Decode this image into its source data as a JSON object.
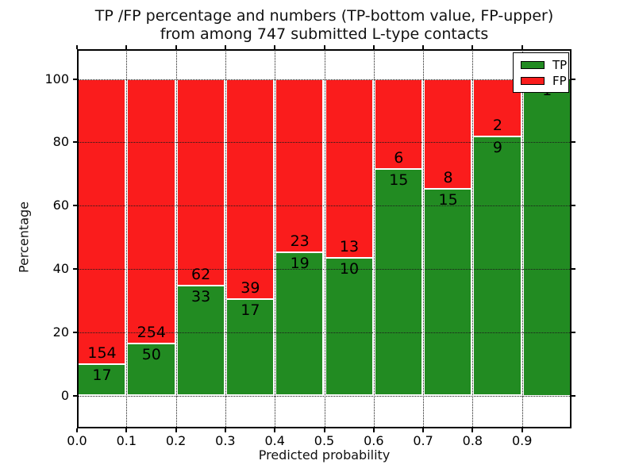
{
  "title": {
    "line1": "TP /FP percentage and numbers (TP-bottom value, FP-upper)",
    "line2": "from among 747 submitted L-type contacts"
  },
  "axis": {
    "xlabel": "Predicted probability",
    "ylabel": "Percentage",
    "x_tick_labels": [
      "0.0",
      "0.1",
      "0.2",
      "0.3",
      "0.4",
      "0.5",
      "0.6",
      "0.7",
      "0.8",
      "0.9"
    ],
    "y_tick_labels": [
      "0",
      "20",
      "40",
      "60",
      "80",
      "100"
    ]
  },
  "legend": {
    "items": [
      {
        "label": "TP",
        "color": "#228b22"
      },
      {
        "label": "FP",
        "color": "#fa1c1c"
      }
    ],
    "position": "upper right"
  },
  "colors": {
    "tp": "#228b22",
    "fp": "#fa1c1c",
    "grid": "#1a1a1a",
    "background": "#ffffff"
  },
  "chart_data": {
    "type": "bar",
    "stacked": true,
    "title": "TP /FP percentage and numbers (TP-bottom value, FP-upper) from among 747 submitted L-type contacts",
    "xlabel": "Predicted probability",
    "ylabel": "Percentage",
    "total_contacts": 747,
    "x_bin_edges": [
      0.0,
      0.1,
      0.2,
      0.3,
      0.4,
      0.5,
      0.6,
      0.7,
      0.8,
      0.9,
      1.0
    ],
    "x_ticks": [
      0.0,
      0.1,
      0.2,
      0.3,
      0.4,
      0.5,
      0.6,
      0.7,
      0.8,
      0.9
    ],
    "y_ticks": [
      0,
      20,
      40,
      60,
      80,
      100
    ],
    "xlim": [
      0.0,
      1.0
    ],
    "ylim": [
      -10.5,
      109.5
    ],
    "grid": "dotted",
    "legend_position": "upper right",
    "series": [
      {
        "name": "TP",
        "color": "#228b22",
        "counts": [
          17,
          50,
          33,
          17,
          19,
          10,
          15,
          15,
          9,
          1
        ],
        "percent": [
          9.94,
          16.45,
          34.74,
          30.36,
          45.24,
          43.48,
          71.43,
          65.22,
          81.82,
          100.0
        ]
      },
      {
        "name": "FP",
        "color": "#fa1c1c",
        "counts": [
          154,
          254,
          62,
          39,
          23,
          13,
          6,
          8,
          2,
          0
        ],
        "percent": [
          90.06,
          83.55,
          65.26,
          69.64,
          54.76,
          56.52,
          28.57,
          34.78,
          18.18,
          0.0
        ]
      }
    ],
    "annotations": {
      "tp_labels": [
        "17",
        "50",
        "33",
        "17",
        "19",
        "10",
        "15",
        "15",
        "9",
        "1"
      ],
      "fp_labels": [
        "154",
        "254",
        "62",
        "39",
        "23",
        "13",
        "6",
        "8",
        "2",
        ""
      ]
    }
  }
}
